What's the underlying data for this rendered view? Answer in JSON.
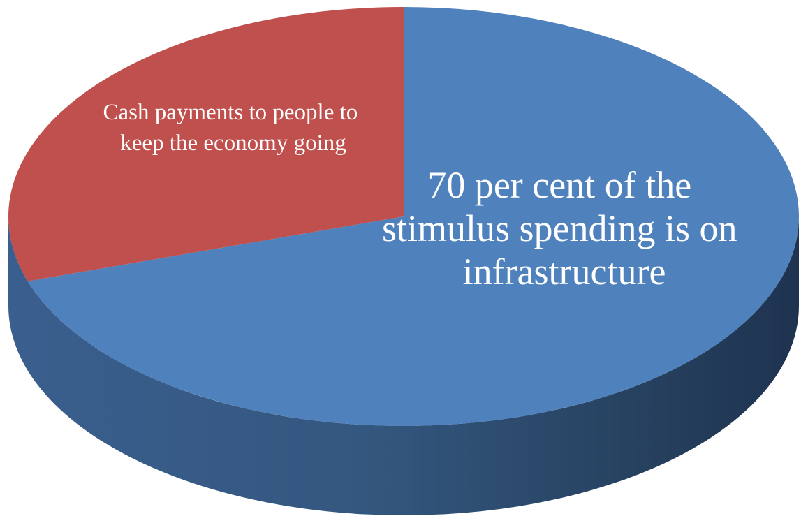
{
  "chart_data": {
    "type": "pie",
    "style": "3d",
    "title": "",
    "slices": [
      {
        "value": 70,
        "color": "#4f81bd",
        "side_color": "#2f4f78",
        "label_lines": [
          "70 per cent of the",
          "stimulus spending is on",
          "infrastructure"
        ]
      },
      {
        "value": 30,
        "color": "#c0504d",
        "side_color": "#8c3331",
        "label_lines": [
          "Cash payments to people to",
          "keep the economy going"
        ]
      }
    ],
    "legend": "none"
  }
}
